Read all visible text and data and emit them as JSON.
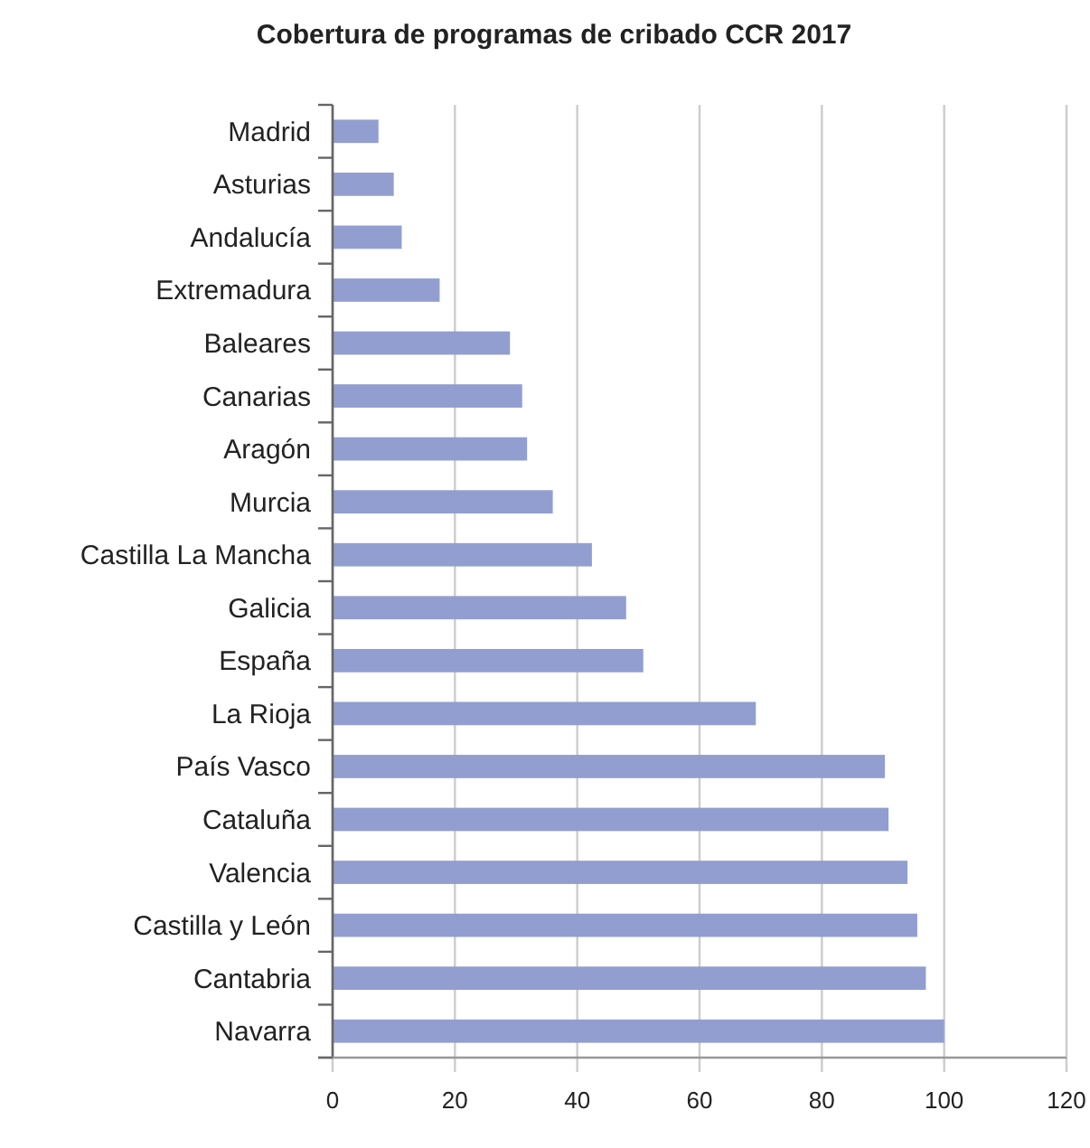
{
  "chart_data": {
    "type": "bar",
    "orientation": "horizontal",
    "title": "Cobertura de programas de cribado CCR 2017",
    "categories": [
      "Madrid",
      "Asturias",
      "Andalucía",
      "Extremadura",
      "Baleares",
      "Canarias",
      "Aragón",
      "Murcia",
      "Castilla La Mancha",
      "Galicia",
      "España",
      "La Rioja",
      "País Vasco",
      "Cataluña",
      "Valencia",
      "Castilla y León",
      "Cantabria",
      "Navarra"
    ],
    "values": [
      7.5,
      10,
      11.3,
      17.5,
      29,
      31,
      31.8,
      36,
      42.4,
      48,
      50.8,
      69.2,
      90.3,
      90.9,
      94,
      95.6,
      97,
      100
    ],
    "color": "#929ecf",
    "xlim": [
      0,
      120
    ],
    "xticks": [
      0,
      20,
      40,
      60,
      80,
      100,
      120
    ],
    "grid": "x"
  }
}
